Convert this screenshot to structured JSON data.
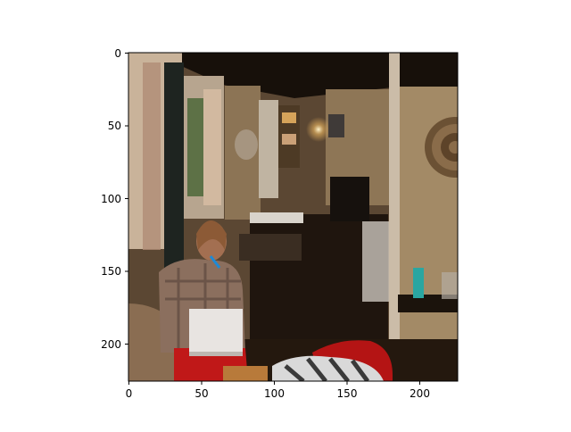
{
  "figure": {
    "x_ticks": [
      "0",
      "50",
      "100",
      "150",
      "200"
    ],
    "y_ticks": [
      "0",
      "50",
      "100",
      "150",
      "200"
    ],
    "image_description": "Dim cabin interior: woman in a plaid shirt sitting with a white laptop, kitchen area with stove and lamp behind her, window at left, decorative wall plate at right, red and striped fabric in foreground."
  },
  "colors": {
    "ceiling": "#1a120b",
    "wall": "#7a6448",
    "wall_light": "#a58c69",
    "floor": "#2a1d12",
    "curtain": "#c8a88e",
    "laptop": "#e6e2df",
    "red_fabric": "#b31616",
    "plaid": "#8d6f5d"
  }
}
